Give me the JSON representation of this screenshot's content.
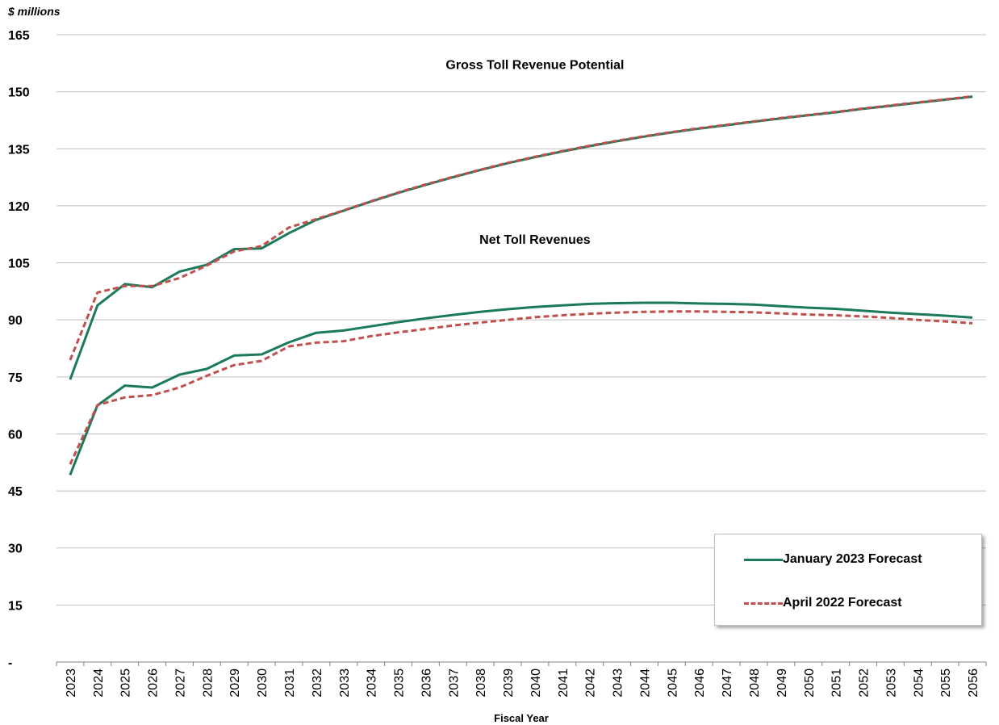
{
  "chart_data": {
    "type": "line",
    "unit_label": "$ millions",
    "xlabel": "Fiscal Year",
    "ylabel": "",
    "ylim": [
      0,
      165
    ],
    "yticks": [
      0,
      15,
      30,
      45,
      60,
      75,
      90,
      105,
      120,
      135,
      150,
      165
    ],
    "ytick_labels": [
      "-",
      "15",
      "30",
      "45",
      "60",
      "75",
      "90",
      "105",
      "120",
      "135",
      "150",
      "165"
    ],
    "grid": "horizontal",
    "legend_position": "bottom-right",
    "x": [
      2023,
      2024,
      2025,
      2026,
      2027,
      2028,
      2029,
      2030,
      2031,
      2032,
      2033,
      2034,
      2035,
      2036,
      2037,
      2038,
      2039,
      2040,
      2041,
      2042,
      2043,
      2044,
      2045,
      2046,
      2047,
      2048,
      2049,
      2050,
      2051,
      2052,
      2053,
      2054,
      2055,
      2056
    ],
    "annotations": [
      {
        "text": "Gross Toll Revenue Potential",
        "x": 2040,
        "y": 156
      },
      {
        "text": "Net Toll Revenues",
        "x": 2040,
        "y": 110
      }
    ],
    "series": [
      {
        "name": "January 2023 Forecast",
        "group": "Gross Toll Revenue Potential",
        "color": "#1a7a5a",
        "style": "solid",
        "values": [
          74.3,
          93.8,
          99.4,
          98.6,
          102.7,
          104.5,
          108.6,
          108.8,
          112.8,
          116.3,
          118.7,
          121.1,
          123.4,
          125.5,
          127.5,
          129.4,
          131.2,
          132.8,
          134.3,
          135.7,
          137.0,
          138.2,
          139.3,
          140.3,
          141.2,
          142.1,
          143.0,
          143.8,
          144.6,
          145.5,
          146.3,
          147.1,
          147.9,
          148.7
        ]
      },
      {
        "name": "April 2022 Forecast",
        "group": "Gross Toll Revenue Potential",
        "color": "#c0504d",
        "style": "dashed",
        "values": [
          79.4,
          97.2,
          98.9,
          98.9,
          101.0,
          104.3,
          108.0,
          109.4,
          114.3,
          116.5,
          118.8,
          121.2,
          123.5,
          125.6,
          127.6,
          129.5,
          131.3,
          132.9,
          134.4,
          135.8,
          137.1,
          138.3,
          139.4,
          140.4,
          141.3,
          142.2,
          143.1,
          143.9,
          144.7,
          145.6,
          146.4,
          147.2,
          148.0,
          148.8
        ]
      },
      {
        "name": "January 2023 Forecast",
        "group": "Net Toll Revenues",
        "color": "#1a7a5a",
        "style": "solid",
        "values": [
          49.2,
          67.5,
          72.7,
          72.2,
          75.6,
          77.1,
          80.6,
          80.9,
          84.1,
          86.6,
          87.2,
          88.3,
          89.4,
          90.4,
          91.3,
          92.1,
          92.8,
          93.4,
          93.8,
          94.2,
          94.4,
          94.5,
          94.5,
          94.3,
          94.2,
          94.0,
          93.6,
          93.2,
          92.9,
          92.4,
          91.9,
          91.5,
          91.1,
          90.6
        ]
      },
      {
        "name": "April 2022 Forecast",
        "group": "Net Toll Revenues",
        "color": "#c0504d",
        "style": "dashed",
        "values": [
          52.0,
          67.6,
          69.6,
          70.2,
          72.2,
          75.3,
          78.1,
          79.2,
          83.0,
          84.0,
          84.4,
          85.7,
          86.7,
          87.6,
          88.5,
          89.3,
          90.0,
          90.7,
          91.2,
          91.6,
          91.9,
          92.1,
          92.2,
          92.2,
          92.1,
          92.0,
          91.7,
          91.4,
          91.2,
          90.9,
          90.5,
          90.0,
          89.6,
          89.1
        ]
      }
    ]
  },
  "legend": {
    "items": [
      {
        "label": "January 2023 Forecast",
        "color": "#1a7a5a",
        "style": "solid"
      },
      {
        "label": "April 2022 Forecast",
        "color": "#c0504d",
        "style": "dashed"
      }
    ]
  }
}
